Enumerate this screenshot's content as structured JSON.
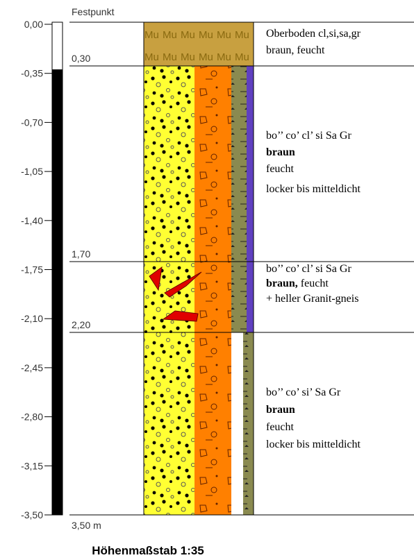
{
  "scale": {
    "ticks": [
      "0,00",
      "-0,35",
      "-0,70",
      "-1,05",
      "-1,40",
      "-1,75",
      "-2,10",
      "-2,45",
      "-2,80",
      "-3,15",
      "-3,50"
    ]
  },
  "reference": "Festpunkt",
  "layers": [
    {
      "depth": "0,30",
      "symbol": "Mu",
      "lines": [
        "Oberboden cl,si,sa,gr",
        "braun, feucht"
      ]
    },
    {
      "depth": "1,70",
      "lines": [
        "bo’’ co’ cl’ si  Sa  Gr",
        "braun",
        "feucht",
        "locker bis mitteldicht"
      ]
    },
    {
      "depth": "2,20",
      "lines": [
        "bo’’ co’ cl’ si  Sa  Gr",
        "braun,",
        "feucht",
        "+ heller Granit-gneis"
      ]
    },
    {
      "depth": "3,50 m",
      "lines": [
        "bo’’ co’ si’  Sa  Gr",
        "braun",
        "feucht",
        "locker bis mitteldicht"
      ]
    }
  ],
  "footer": "Höhenmaßstab 1:35"
}
